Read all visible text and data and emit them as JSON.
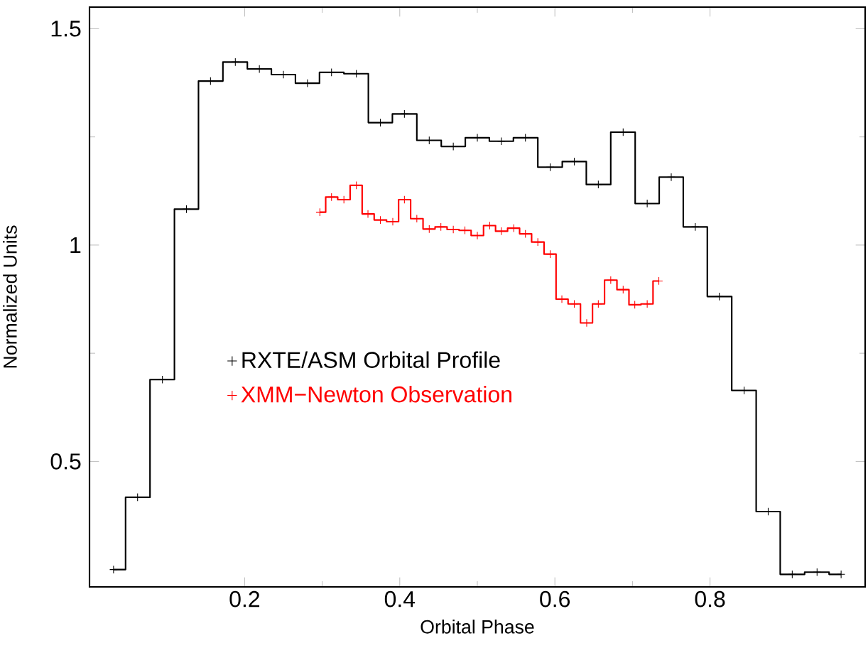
{
  "chart_data": {
    "type": "step",
    "xlabel": "Orbital Phase",
    "ylabel": "Normalized Units",
    "xlim": [
      0,
      1
    ],
    "ylim": [
      0.21,
      1.55
    ],
    "xticks": [
      0.2,
      0.4,
      0.6,
      0.8
    ],
    "yticks": [
      0.5,
      1,
      1.5
    ],
    "legend": "left",
    "marker": "cross",
    "grid": false,
    "series": [
      {
        "name": "RXTE/ASM Orbital Profile",
        "color": "#000000",
        "x": [
          0.031,
          0.062,
          0.094,
          0.125,
          0.156,
          0.188,
          0.219,
          0.25,
          0.281,
          0.312,
          0.344,
          0.375,
          0.406,
          0.438,
          0.469,
          0.5,
          0.531,
          0.562,
          0.594,
          0.625,
          0.656,
          0.688,
          0.719,
          0.75,
          0.781,
          0.812,
          0.844,
          0.875,
          0.906,
          0.938,
          0.969
        ],
        "values": [
          0.25,
          0.417,
          0.689,
          1.083,
          1.379,
          1.423,
          1.407,
          1.394,
          1.374,
          1.399,
          1.396,
          1.283,
          1.303,
          1.242,
          1.228,
          1.248,
          1.24,
          1.248,
          1.18,
          1.193,
          1.14,
          1.261,
          1.096,
          1.157,
          1.042,
          0.881,
          0.664,
          0.384,
          0.239,
          0.244,
          0.239
        ]
      },
      {
        "name": "XMM−Newton Observation",
        "color": "#ff0000",
        "x": [
          0.297,
          0.312,
          0.328,
          0.344,
          0.359,
          0.375,
          0.391,
          0.406,
          0.422,
          0.438,
          0.453,
          0.469,
          0.484,
          0.5,
          0.516,
          0.531,
          0.547,
          0.562,
          0.578,
          0.594,
          0.609,
          0.625,
          0.641,
          0.656,
          0.672,
          0.688,
          0.703,
          0.719,
          0.734
        ],
        "values": [
          1.076,
          1.111,
          1.105,
          1.138,
          1.072,
          1.058,
          1.054,
          1.105,
          1.061,
          1.037,
          1.042,
          1.036,
          1.034,
          1.022,
          1.045,
          1.032,
          1.039,
          1.026,
          1.007,
          0.979,
          0.875,
          0.864,
          0.82,
          0.864,
          0.919,
          0.897,
          0.862,
          0.864,
          0.917
        ]
      }
    ]
  }
}
